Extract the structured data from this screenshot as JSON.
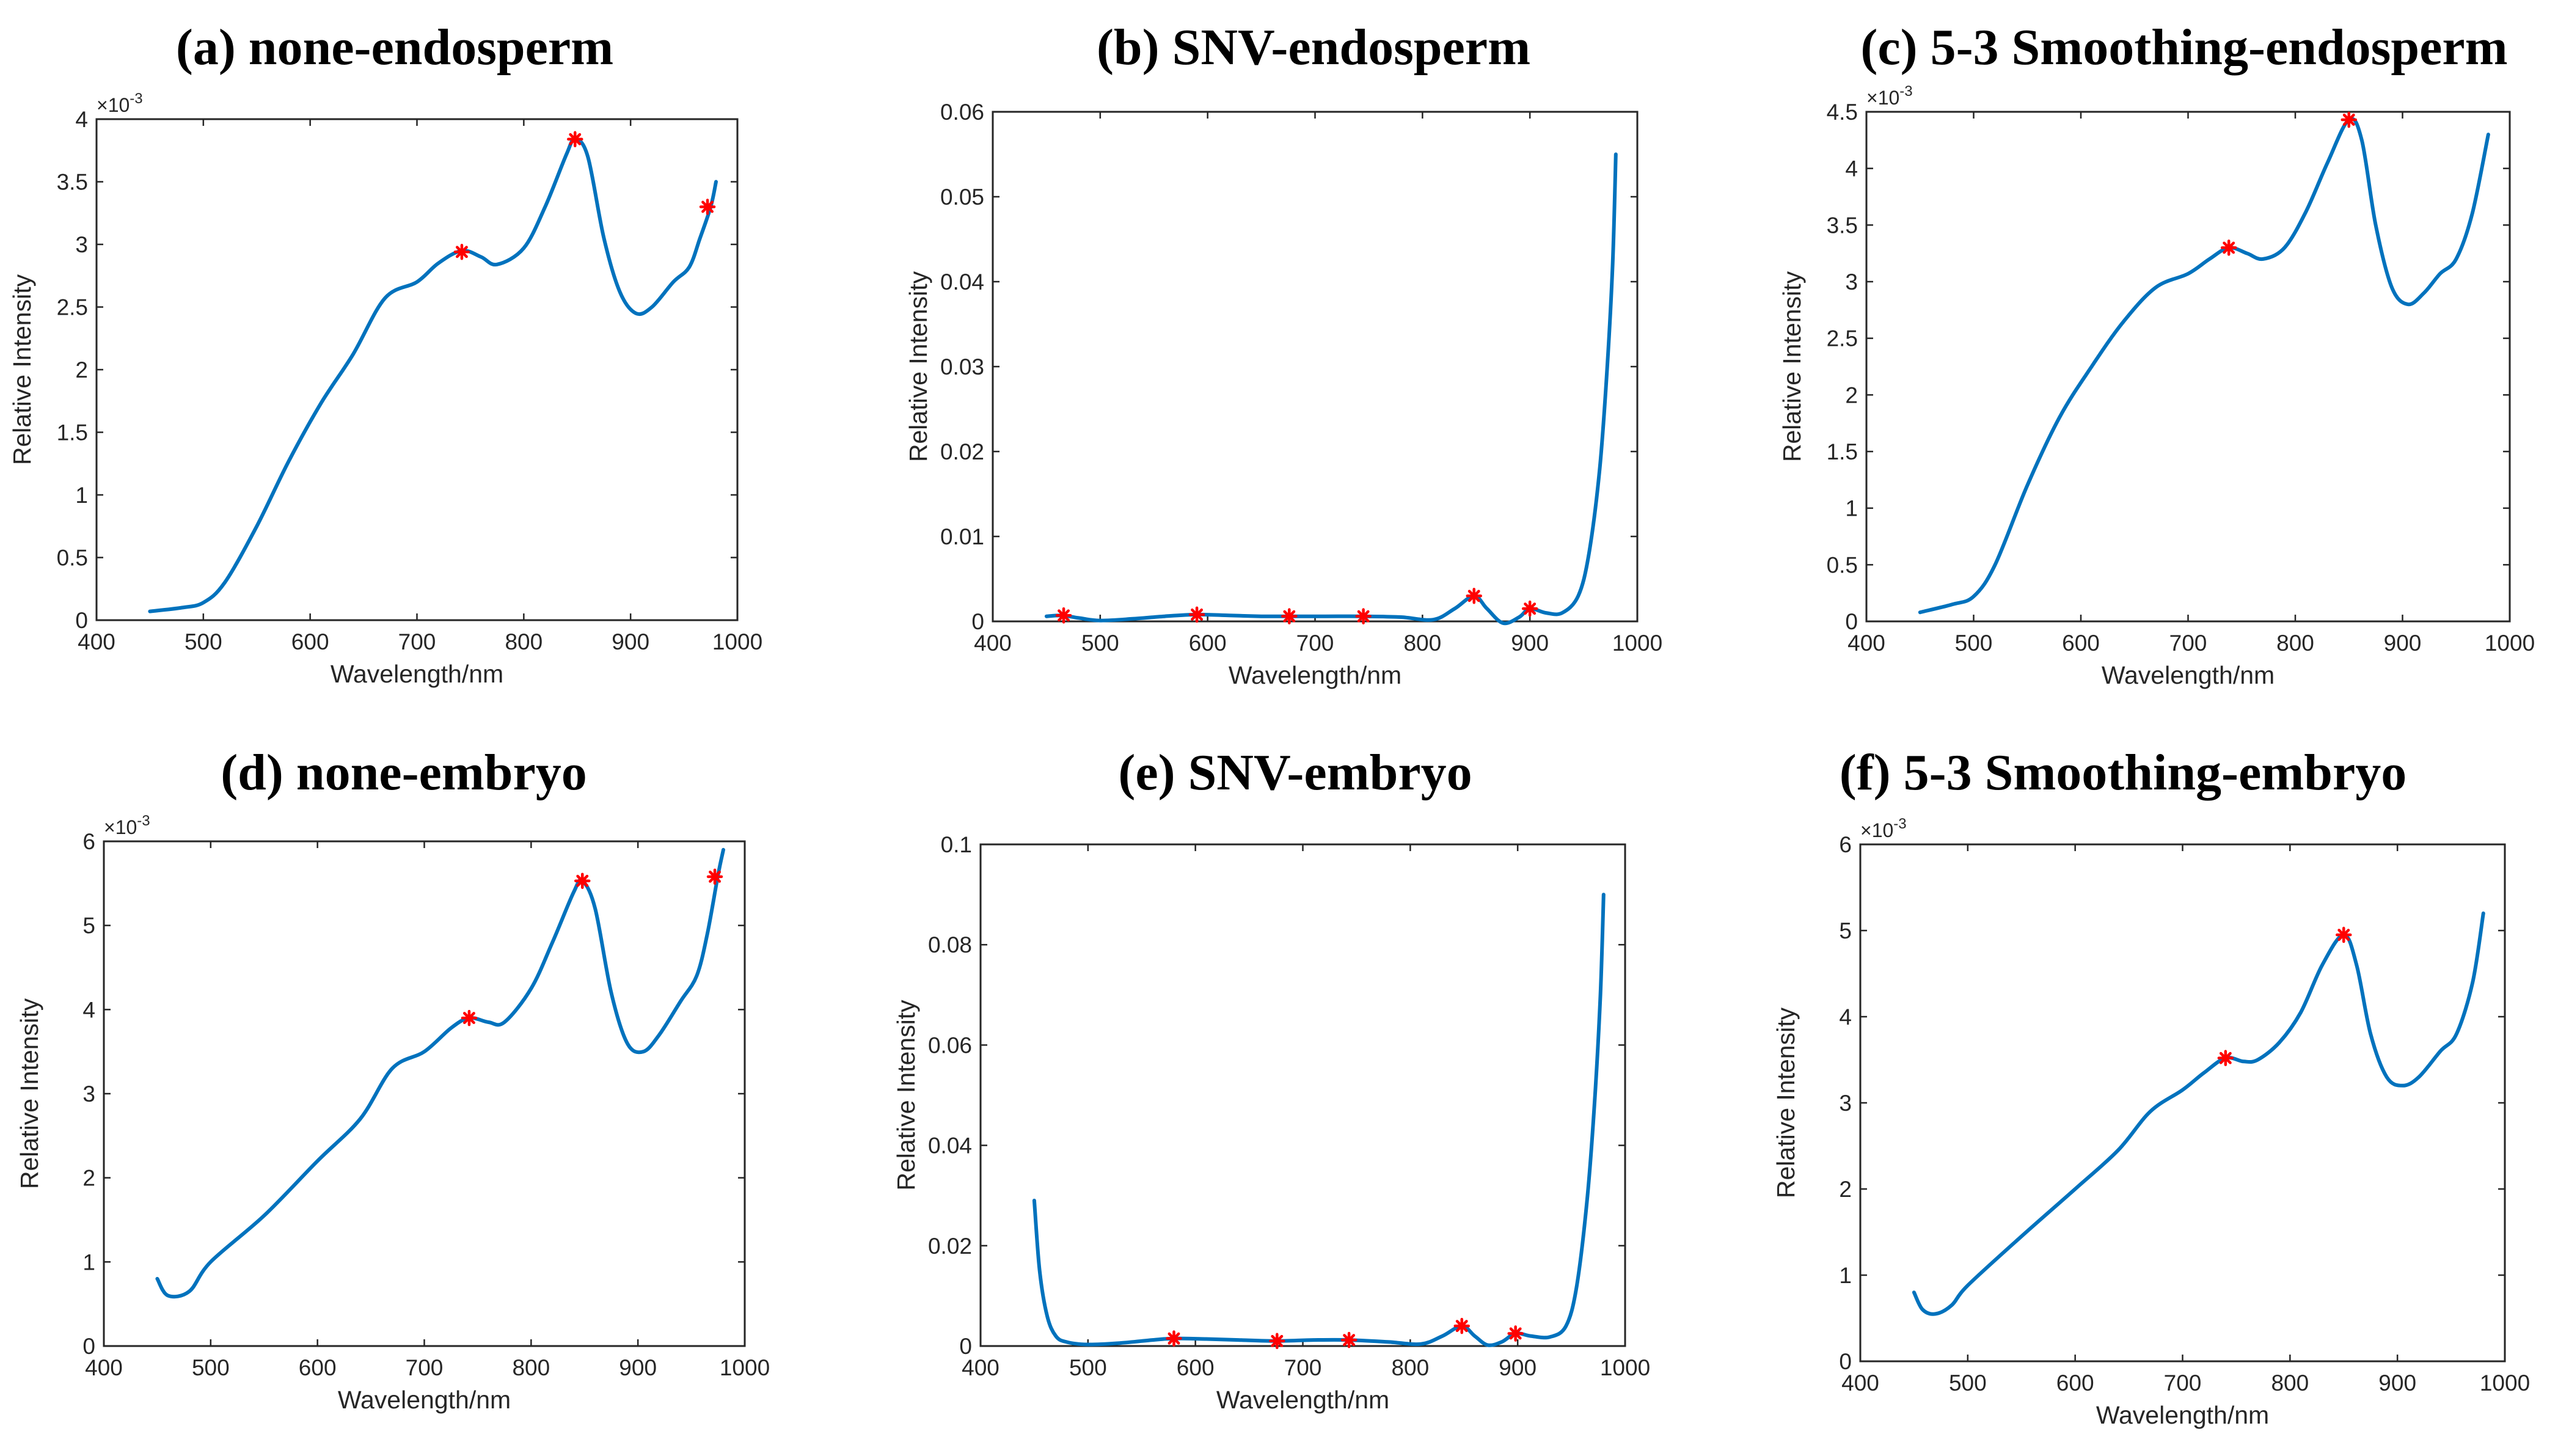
{
  "chart_data": [
    {
      "type": "line",
      "title": "(a) none-endosperm",
      "xlabel": "Wavelength/nm",
      "ylabel": "Relative Intensity",
      "xlim": [
        400,
        1000
      ],
      "ylim": [
        0,
        4
      ],
      "y_exponent": "-3",
      "xticks": [
        400,
        500,
        600,
        700,
        800,
        900,
        1000
      ],
      "xtick_labels": [
        "400",
        "500",
        "600",
        "700",
        "800",
        "900",
        "1000"
      ],
      "yticks": [
        0,
        0.5,
        1,
        1.5,
        2,
        2.5,
        3,
        3.5,
        4
      ],
      "ytick_labels": [
        "0",
        "0.5",
        "1",
        "1.5",
        "2",
        "2.5",
        "3",
        "3.5",
        "4"
      ],
      "grid": false,
      "series": [
        {
          "name": "spectrum",
          "points": [
            [
              450,
              0.07
            ],
            [
              480,
              0.1
            ],
            [
              500,
              0.14
            ],
            [
              520,
              0.3
            ],
            [
              550,
              0.75
            ],
            [
              580,
              1.27
            ],
            [
              610,
              1.73
            ],
            [
              640,
              2.12
            ],
            [
              670,
              2.57
            ],
            [
              700,
              2.7
            ],
            [
              720,
              2.85
            ],
            [
              742,
              2.95
            ],
            [
              760,
              2.9
            ],
            [
              775,
              2.84
            ],
            [
              800,
              2.97
            ],
            [
              820,
              3.3
            ],
            [
              840,
              3.72
            ],
            [
              848,
              3.84
            ],
            [
              860,
              3.7
            ],
            [
              875,
              3.05
            ],
            [
              890,
              2.62
            ],
            [
              905,
              2.45
            ],
            [
              920,
              2.5
            ],
            [
              940,
              2.7
            ],
            [
              955,
              2.82
            ],
            [
              965,
              3.05
            ],
            [
              975,
              3.3
            ],
            [
              980,
              3.5
            ]
          ]
        }
      ],
      "peaks": [
        [
          742,
          2.94
        ],
        [
          848,
          3.84
        ],
        [
          972,
          3.3
        ]
      ]
    },
    {
      "type": "line",
      "title": "(b) SNV-endosperm",
      "xlabel": "Wavelength/nm",
      "ylabel": "Relative Intensity",
      "xlim": [
        400,
        1000
      ],
      "ylim": [
        0,
        0.06
      ],
      "xticks": [
        400,
        500,
        600,
        700,
        800,
        900,
        1000
      ],
      "xtick_labels": [
        "400",
        "500",
        "600",
        "700",
        "800",
        "900",
        "1000"
      ],
      "yticks": [
        0,
        0.01,
        0.02,
        0.03,
        0.04,
        0.05,
        0.06
      ],
      "ytick_labels": [
        "0",
        "0.01",
        "0.02",
        "0.03",
        "0.04",
        "0.05",
        "0.06"
      ],
      "grid": false,
      "series": [
        {
          "name": "spectrum",
          "points": [
            [
              450,
              0.0006
            ],
            [
              465,
              0.0007
            ],
            [
              480,
              0.0004
            ],
            [
              500,
              0.0001
            ],
            [
              530,
              0.0003
            ],
            [
              560,
              0.0006
            ],
            [
              590,
              0.0008
            ],
            [
              620,
              0.0007
            ],
            [
              650,
              0.0006
            ],
            [
              676,
              0.0006
            ],
            [
              710,
              0.0006
            ],
            [
              745,
              0.0006
            ],
            [
              780,
              0.0005
            ],
            [
              810,
              0.0002
            ],
            [
              830,
              0.0015
            ],
            [
              848,
              0.003
            ],
            [
              860,
              0.0015
            ],
            [
              875,
              -0.0002
            ],
            [
              890,
              0.0005
            ],
            [
              900,
              0.0015
            ],
            [
              915,
              0.001
            ],
            [
              930,
              0.001
            ],
            [
              945,
              0.003
            ],
            [
              955,
              0.008
            ],
            [
              965,
              0.018
            ],
            [
              972,
              0.03
            ],
            [
              977,
              0.042
            ],
            [
              980,
              0.055
            ]
          ]
        }
      ],
      "peaks": [
        [
          466,
          0.0007
        ],
        [
          590,
          0.0008
        ],
        [
          676,
          0.0006
        ],
        [
          745,
          0.0006
        ],
        [
          848,
          0.003
        ],
        [
          900,
          0.0015
        ]
      ]
    },
    {
      "type": "line",
      "title": "(c) 5-3 Smoothing-endosperm",
      "xlabel": "Wavelength/nm",
      "ylabel": "Relative Intensity",
      "xlim": [
        400,
        1000
      ],
      "ylim": [
        0,
        4.5
      ],
      "y_exponent": "-3",
      "xticks": [
        400,
        500,
        600,
        700,
        800,
        900,
        1000
      ],
      "xtick_labels": [
        "400",
        "500",
        "600",
        "700",
        "800",
        "900",
        "1000"
      ],
      "yticks": [
        0,
        0.5,
        1,
        1.5,
        2,
        2.5,
        3,
        3.5,
        4,
        4.5
      ],
      "ytick_labels": [
        "0",
        "0.5",
        "1",
        "1.5",
        "2",
        "2.5",
        "3",
        "3.5",
        "4",
        "4.5"
      ],
      "grid": false,
      "series": [
        {
          "name": "spectrum",
          "points": [
            [
              450,
              0.08
            ],
            [
              480,
              0.15
            ],
            [
              500,
              0.22
            ],
            [
              520,
              0.5
            ],
            [
              550,
              1.2
            ],
            [
              580,
              1.8
            ],
            [
              610,
              2.25
            ],
            [
              640,
              2.65
            ],
            [
              670,
              2.95
            ],
            [
              700,
              3.07
            ],
            [
              720,
              3.2
            ],
            [
              738,
              3.3
            ],
            [
              755,
              3.25
            ],
            [
              770,
              3.2
            ],
            [
              790,
              3.3
            ],
            [
              810,
              3.62
            ],
            [
              830,
              4.05
            ],
            [
              850,
              4.43
            ],
            [
              862,
              4.25
            ],
            [
              875,
              3.5
            ],
            [
              890,
              2.95
            ],
            [
              905,
              2.8
            ],
            [
              920,
              2.9
            ],
            [
              935,
              3.07
            ],
            [
              950,
              3.2
            ],
            [
              965,
              3.6
            ],
            [
              980,
              4.3
            ]
          ]
        }
      ],
      "peaks": [
        [
          738,
          3.3
        ],
        [
          850,
          4.43
        ]
      ]
    },
    {
      "type": "line",
      "title": "(d) none-embryo",
      "xlabel": "Wavelength/nm",
      "ylabel": "Relative Intensity",
      "xlim": [
        400,
        1000
      ],
      "ylim": [
        0,
        6
      ],
      "y_exponent": "-3",
      "xticks": [
        400,
        500,
        600,
        700,
        800,
        900,
        1000
      ],
      "xtick_labels": [
        "400",
        "500",
        "600",
        "700",
        "800",
        "900",
        "1000"
      ],
      "yticks": [
        0,
        1,
        2,
        3,
        4,
        5,
        6
      ],
      "ytick_labels": [
        "0",
        "1",
        "2",
        "3",
        "4",
        "5",
        "6"
      ],
      "grid": false,
      "series": [
        {
          "name": "spectrum",
          "points": [
            [
              450,
              0.8
            ],
            [
              460,
              0.6
            ],
            [
              480,
              0.65
            ],
            [
              500,
              1.0
            ],
            [
              550,
              1.55
            ],
            [
              600,
              2.2
            ],
            [
              640,
              2.7
            ],
            [
              670,
              3.3
            ],
            [
              700,
              3.5
            ],
            [
              725,
              3.78
            ],
            [
              742,
              3.9
            ],
            [
              760,
              3.85
            ],
            [
              775,
              3.85
            ],
            [
              800,
              4.25
            ],
            [
              820,
              4.8
            ],
            [
              840,
              5.4
            ],
            [
              848,
              5.53
            ],
            [
              860,
              5.2
            ],
            [
              875,
              4.2
            ],
            [
              890,
              3.6
            ],
            [
              905,
              3.5
            ],
            [
              920,
              3.7
            ],
            [
              940,
              4.1
            ],
            [
              955,
              4.4
            ],
            [
              965,
              4.9
            ],
            [
              975,
              5.6
            ],
            [
              980,
              5.9
            ]
          ]
        }
      ],
      "peaks": [
        [
          742,
          3.9
        ],
        [
          848,
          5.53
        ],
        [
          972,
          5.58
        ]
      ]
    },
    {
      "type": "line",
      "title": "(e) SNV-embryo",
      "xlabel": "Wavelength/nm",
      "ylabel": "Relative Intensity",
      "xlim": [
        400,
        1000
      ],
      "ylim": [
        0,
        0.1
      ],
      "xticks": [
        400,
        500,
        600,
        700,
        800,
        900,
        1000
      ],
      "xtick_labels": [
        "400",
        "500",
        "600",
        "700",
        "800",
        "900",
        "1000"
      ],
      "yticks": [
        0,
        0.02,
        0.04,
        0.06,
        0.08,
        0.1
      ],
      "ytick_labels": [
        "0",
        "0.02",
        "0.04",
        "0.06",
        "0.08",
        "0.1"
      ],
      "grid": false,
      "series": [
        {
          "name": "spectrum",
          "points": [
            [
              450,
              0.029
            ],
            [
              455,
              0.015
            ],
            [
              462,
              0.006
            ],
            [
              470,
              0.002
            ],
            [
              480,
              0.0008
            ],
            [
              500,
              0.0003
            ],
            [
              530,
              0.0006
            ],
            [
              560,
              0.0012
            ],
            [
              580,
              0.0015
            ],
            [
              610,
              0.0014
            ],
            [
              640,
              0.0012
            ],
            [
              676,
              0.001
            ],
            [
              710,
              0.0012
            ],
            [
              743,
              0.0012
            ],
            [
              780,
              0.0008
            ],
            [
              810,
              0.0004
            ],
            [
              830,
              0.002
            ],
            [
              848,
              0.004
            ],
            [
              860,
              0.002
            ],
            [
              872,
              0.0002
            ],
            [
              885,
              0.0008
            ],
            [
              898,
              0.0025
            ],
            [
              912,
              0.002
            ],
            [
              930,
              0.0018
            ],
            [
              945,
              0.004
            ],
            [
              955,
              0.012
            ],
            [
              965,
              0.03
            ],
            [
              972,
              0.05
            ],
            [
              977,
              0.07
            ],
            [
              980,
              0.09
            ]
          ]
        }
      ],
      "peaks": [
        [
          580,
          0.0015
        ],
        [
          676,
          0.001
        ],
        [
          743,
          0.0012
        ],
        [
          848,
          0.004
        ],
        [
          898,
          0.0025
        ]
      ]
    },
    {
      "type": "line",
      "title": "(f) 5-3 Smoothing-embryo",
      "xlabel": "Wavelength/nm",
      "ylabel": "Relative Intensity",
      "xlim": [
        400,
        1000
      ],
      "ylim": [
        0,
        6
      ],
      "y_exponent": "-3",
      "xticks": [
        400,
        500,
        600,
        700,
        800,
        900,
        1000
      ],
      "xtick_labels": [
        "400",
        "500",
        "600",
        "700",
        "800",
        "900",
        "1000"
      ],
      "yticks": [
        0,
        1,
        2,
        3,
        4,
        5,
        6
      ],
      "ytick_labels": [
        "0",
        "1",
        "2",
        "3",
        "4",
        "5",
        "6"
      ],
      "grid": false,
      "series": [
        {
          "name": "spectrum",
          "points": [
            [
              450,
              0.8
            ],
            [
              458,
              0.6
            ],
            [
              470,
              0.55
            ],
            [
              485,
              0.65
            ],
            [
              500,
              0.88
            ],
            [
              550,
              1.45
            ],
            [
              600,
              2.0
            ],
            [
              640,
              2.45
            ],
            [
              670,
              2.9
            ],
            [
              700,
              3.15
            ],
            [
              720,
              3.35
            ],
            [
              740,
              3.52
            ],
            [
              757,
              3.48
            ],
            [
              770,
              3.5
            ],
            [
              790,
              3.7
            ],
            [
              810,
              4.05
            ],
            [
              830,
              4.6
            ],
            [
              850,
              4.95
            ],
            [
              862,
              4.6
            ],
            [
              875,
              3.8
            ],
            [
              890,
              3.3
            ],
            [
              905,
              3.2
            ],
            [
              920,
              3.3
            ],
            [
              940,
              3.6
            ],
            [
              955,
              3.8
            ],
            [
              970,
              4.4
            ],
            [
              980,
              5.2
            ]
          ]
        }
      ],
      "peaks": [
        [
          740,
          3.52
        ],
        [
          850,
          4.95
        ]
      ]
    }
  ]
}
